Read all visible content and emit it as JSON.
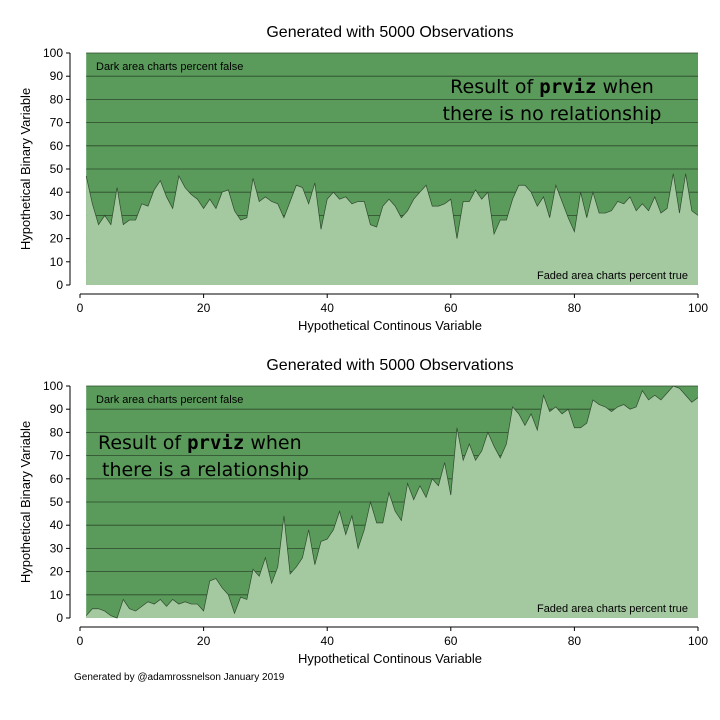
{
  "chart_data": [
    {
      "type": "area",
      "title": "Generated with 5000 Observations",
      "xlabel": "Hypothetical Continous Variable",
      "ylabel": "Hypothetical Binary Variable",
      "xlim": [
        0,
        100
      ],
      "ylim": [
        0,
        100
      ],
      "x_ticks": [
        0,
        20,
        40,
        60,
        80,
        100
      ],
      "y_ticks": [
        0,
        10,
        20,
        30,
        40,
        50,
        60,
        70,
        80,
        90,
        100
      ],
      "grid": true,
      "annotations": {
        "dark_area": "Dark area charts percent false",
        "faded_area": "Faded area charts percent true",
        "note_pre": "Result of ",
        "note_code": "prviz",
        "note_post": " when",
        "note_line2": "there is no relationship"
      },
      "x": [
        1,
        2,
        3,
        4,
        5,
        6,
        7,
        8,
        9,
        10,
        11,
        12,
        13,
        14,
        15,
        16,
        17,
        18,
        19,
        20,
        21,
        22,
        23,
        24,
        25,
        26,
        27,
        28,
        29,
        30,
        31,
        32,
        33,
        34,
        35,
        36,
        37,
        38,
        39,
        40,
        41,
        42,
        43,
        44,
        45,
        46,
        47,
        48,
        49,
        50,
        51,
        52,
        53,
        54,
        55,
        56,
        57,
        58,
        59,
        60,
        61,
        62,
        63,
        64,
        65,
        66,
        67,
        68,
        69,
        70,
        71,
        72,
        73,
        74,
        75,
        76,
        77,
        78,
        79,
        80,
        81,
        82,
        83,
        84,
        85,
        86,
        87,
        88,
        89,
        90,
        91,
        92,
        93,
        94,
        95,
        96,
        97,
        98,
        99,
        100
      ],
      "values": [
        47,
        35,
        26,
        30,
        26,
        42,
        26,
        28,
        28,
        35,
        34,
        41,
        45,
        38,
        33,
        47,
        42,
        39,
        37,
        33,
        37,
        33,
        40,
        41,
        32,
        28,
        29,
        46,
        36,
        38,
        36,
        35,
        29,
        36,
        43,
        42,
        35,
        44,
        24,
        37,
        40,
        37,
        38,
        35,
        36,
        36,
        26,
        25,
        34,
        37,
        34,
        29,
        32,
        37,
        40,
        43,
        34,
        34,
        35,
        37,
        20,
        36,
        36,
        41,
        37,
        40,
        22,
        28,
        28,
        37,
        43,
        43,
        40,
        34,
        38,
        29,
        43,
        36,
        29,
        23,
        40,
        29,
        40,
        31,
        31,
        32,
        36,
        35,
        38,
        32,
        35,
        32,
        38,
        31,
        33,
        48,
        31,
        48,
        32,
        30
      ]
    },
    {
      "type": "area",
      "title": "Generated with 5000 Observations",
      "xlabel": "Hypothetical Continous Variable",
      "ylabel": "Hypothetical Binary Variable",
      "xlim": [
        0,
        100
      ],
      "ylim": [
        0,
        100
      ],
      "x_ticks": [
        0,
        20,
        40,
        60,
        80,
        100
      ],
      "y_ticks": [
        0,
        10,
        20,
        30,
        40,
        50,
        60,
        70,
        80,
        90,
        100
      ],
      "grid": true,
      "annotations": {
        "dark_area": "Dark area charts percent false",
        "faded_area": "Faded area charts percent true",
        "note_pre": "Result of ",
        "note_code": "prviz",
        "note_post": " when",
        "note_line2": " there is a relationship"
      },
      "x": [
        1,
        2,
        3,
        4,
        5,
        6,
        7,
        8,
        9,
        10,
        11,
        12,
        13,
        14,
        15,
        16,
        17,
        18,
        19,
        20,
        21,
        22,
        23,
        24,
        25,
        26,
        27,
        28,
        29,
        30,
        31,
        32,
        33,
        34,
        35,
        36,
        37,
        38,
        39,
        40,
        41,
        42,
        43,
        44,
        45,
        46,
        47,
        48,
        49,
        50,
        51,
        52,
        53,
        54,
        55,
        56,
        57,
        58,
        59,
        60,
        61,
        62,
        63,
        64,
        65,
        66,
        67,
        68,
        69,
        70,
        71,
        72,
        73,
        74,
        75,
        76,
        77,
        78,
        79,
        80,
        81,
        82,
        83,
        84,
        85,
        86,
        87,
        88,
        89,
        90,
        91,
        92,
        93,
        94,
        95,
        96,
        97,
        98,
        99,
        100
      ],
      "values": [
        1,
        4,
        4,
        3,
        1,
        0,
        8,
        4,
        3,
        5,
        7,
        6,
        8,
        5,
        8,
        6,
        7,
        6,
        6,
        3,
        16,
        17,
        13,
        10,
        2,
        9,
        8,
        21,
        18,
        26,
        15,
        22,
        44,
        19,
        22,
        26,
        38,
        23,
        33,
        34,
        38,
        46,
        36,
        44,
        30,
        38,
        50,
        41,
        41,
        54,
        46,
        42,
        58,
        51,
        57,
        52,
        60,
        57,
        67,
        53,
        82,
        68,
        75,
        68,
        72,
        80,
        74,
        69,
        75,
        91,
        88,
        83,
        88,
        81,
        96,
        89,
        91,
        88,
        90,
        82,
        82,
        84,
        94,
        92,
        91,
        89,
        91,
        92,
        90,
        91,
        98,
        94,
        96,
        94,
        97,
        100,
        99,
        96,
        93,
        95
      ]
    }
  ],
  "footer": "Generated by @adamrossnelson January 2019",
  "colors": {
    "dark_area": "#5a9a5a",
    "faded_area": "#a4c9a0",
    "outline": "#2f4a2f",
    "grid": "#2c4a2c"
  }
}
